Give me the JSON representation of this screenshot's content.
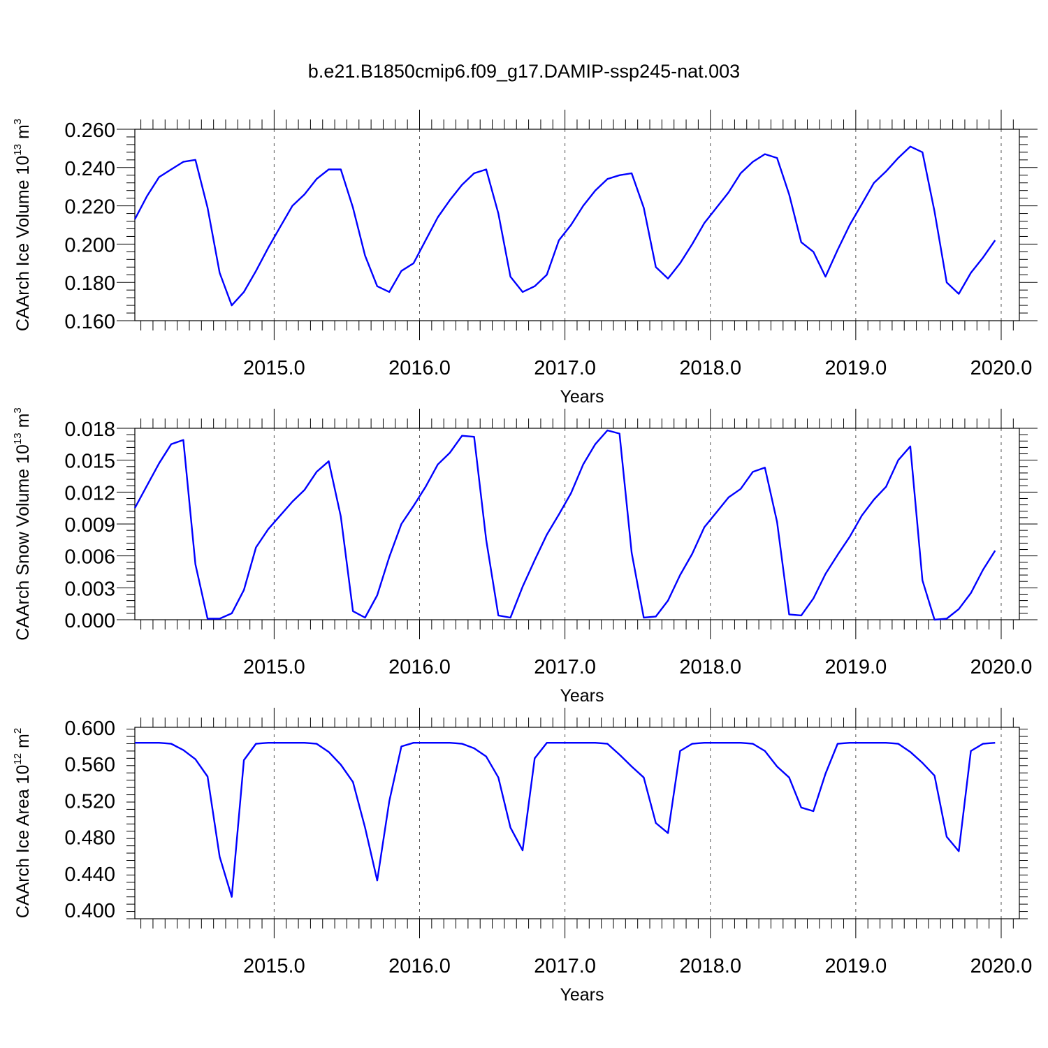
{
  "figure": {
    "title": "b.e21.B1850cmip6.f09_g17.DAMIP-ssp245-nat.003",
    "line_color": "#0000ff"
  },
  "chart_data": [
    {
      "type": "line",
      "ylabel_main": "CAArch Ice Volume 10",
      "ylabel_exp": "13",
      "ylabel_unit": " m",
      "ylabel_unit_exp": "3",
      "xlabel": "Years",
      "xlim": [
        2014.042,
        2020.125
      ],
      "ylim": [
        0.16,
        0.26
      ],
      "yticks": [
        "0.160",
        "0.180",
        "0.200",
        "0.220",
        "0.240",
        "0.260"
      ],
      "xticks": [
        "2015.0",
        "2016.0",
        "2017.0",
        "2018.0",
        "2019.0",
        "2020.0"
      ],
      "series": [
        {
          "x_start": 2014.042,
          "x_step": 0.08333,
          "values": [
            0.213,
            0.225,
            0.235,
            0.239,
            0.243,
            0.244,
            0.219,
            0.185,
            0.168,
            0.175,
            0.186,
            0.198,
            0.209,
            0.22,
            0.226,
            0.234,
            0.239,
            0.239,
            0.219,
            0.194,
            0.178,
            0.175,
            0.186,
            0.19,
            0.202,
            0.214,
            0.223,
            0.231,
            0.237,
            0.239,
            0.216,
            0.183,
            0.175,
            0.178,
            0.184,
            0.202,
            0.21,
            0.22,
            0.228,
            0.234,
            0.236,
            0.237,
            0.219,
            0.188,
            0.182,
            0.19,
            0.2,
            0.211,
            0.219,
            0.227,
            0.237,
            0.243,
            0.247,
            0.245,
            0.226,
            0.201,
            0.196,
            0.183,
            0.197,
            0.21,
            0.221,
            0.232,
            0.238,
            0.245,
            0.251,
            0.248,
            0.217,
            0.18,
            0.174,
            0.185,
            0.193,
            0.202
          ]
        }
      ]
    },
    {
      "type": "line",
      "ylabel_main": "CAArch Snow Volume 10",
      "ylabel_exp": "13",
      "ylabel_unit": " m",
      "ylabel_unit_exp": "3",
      "xlabel": "Years",
      "xlim": [
        2014.042,
        2020.125
      ],
      "ylim": [
        0.0,
        0.018
      ],
      "yticks": [
        "0.000",
        "0.003",
        "0.006",
        "0.009",
        "0.012",
        "0.015",
        "0.018"
      ],
      "xticks": [
        "2015.0",
        "2016.0",
        "2017.0",
        "2018.0",
        "2019.0",
        "2020.0"
      ],
      "series": [
        {
          "x_start": 2014.042,
          "x_step": 0.08333,
          "values": [
            0.0105,
            0.0126,
            0.0147,
            0.0165,
            0.0169,
            0.0052,
            0.0001,
            0.0001,
            0.0006,
            0.0028,
            0.0068,
            0.0085,
            0.0098,
            0.0111,
            0.0122,
            0.0139,
            0.0149,
            0.0097,
            0.0008,
            0.0002,
            0.0023,
            0.0059,
            0.009,
            0.0107,
            0.0125,
            0.0146,
            0.0157,
            0.0173,
            0.0172,
            0.0075,
            0.0004,
            0.0002,
            0.0031,
            0.0056,
            0.008,
            0.0099,
            0.0119,
            0.0146,
            0.0165,
            0.0178,
            0.0175,
            0.0063,
            0.0002,
            0.0003,
            0.0018,
            0.0042,
            0.0062,
            0.0087,
            0.0101,
            0.0115,
            0.0123,
            0.0139,
            0.0143,
            0.0092,
            0.0005,
            0.0004,
            0.002,
            0.0043,
            0.0061,
            0.0078,
            0.0098,
            0.0113,
            0.0125,
            0.015,
            0.0163,
            0.0037,
            0.0,
            0.0001,
            0.001,
            0.0025,
            0.0047,
            0.0065
          ]
        }
      ]
    },
    {
      "type": "line",
      "ylabel_main": "CAArch Ice Area 10",
      "ylabel_exp": "12",
      "ylabel_unit": " m",
      "ylabel_unit_exp": "2",
      "xlabel": "Years",
      "xlim": [
        2014.042,
        2020.125
      ],
      "ylim": [
        0.39,
        0.6
      ],
      "yticks": [
        "0.400",
        "0.440",
        "0.480",
        "0.520",
        "0.560",
        "0.600"
      ],
      "xticks": [
        "2015.0",
        "2016.0",
        "2017.0",
        "2018.0",
        "2019.0",
        "2020.0"
      ],
      "series": [
        {
          "x_start": 2014.042,
          "x_step": 0.08333,
          "values": [
            0.583,
            0.583,
            0.583,
            0.582,
            0.575,
            0.565,
            0.546,
            0.458,
            0.414,
            0.564,
            0.582,
            0.583,
            0.583,
            0.583,
            0.583,
            0.582,
            0.573,
            0.559,
            0.54,
            0.49,
            0.432,
            0.519,
            0.579,
            0.583,
            0.583,
            0.583,
            0.583,
            0.582,
            0.577,
            0.568,
            0.545,
            0.49,
            0.465,
            0.566,
            0.583,
            0.583,
            0.583,
            0.583,
            0.583,
            0.582,
            0.57,
            0.557,
            0.545,
            0.495,
            0.484,
            0.574,
            0.582,
            0.583,
            0.583,
            0.583,
            0.583,
            0.582,
            0.574,
            0.557,
            0.545,
            0.512,
            0.508,
            0.549,
            0.582,
            0.583,
            0.583,
            0.583,
            0.583,
            0.582,
            0.573,
            0.561,
            0.547,
            0.48,
            0.464,
            0.574,
            0.582,
            0.583
          ]
        }
      ]
    }
  ]
}
